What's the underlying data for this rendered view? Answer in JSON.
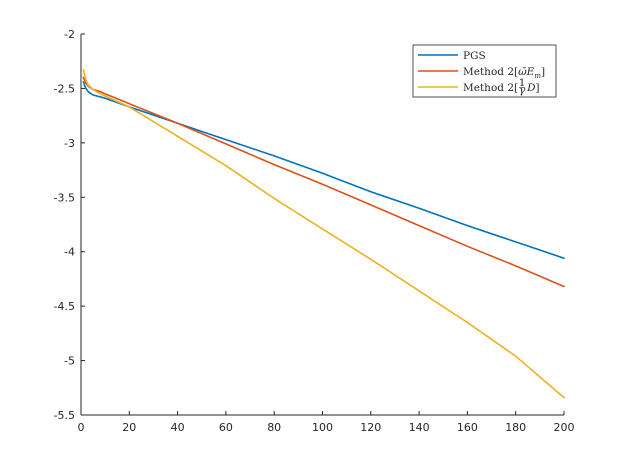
{
  "chart_data": {
    "type": "line",
    "title": "",
    "xlabel": "",
    "ylabel": "",
    "xlim": [
      0,
      200
    ],
    "ylim": [
      -5.5,
      -2
    ],
    "xticks": [
      0,
      20,
      40,
      60,
      80,
      100,
      120,
      140,
      160,
      180,
      200
    ],
    "xtick_labels": [
      "0",
      "20",
      "40",
      "60",
      "80",
      "100",
      "120",
      "140",
      "160",
      "180",
      "200"
    ],
    "yticks": [
      -2,
      -2.5,
      -3,
      -3.5,
      -4,
      -4.5,
      -5,
      -5.5
    ],
    "ytick_labels": [
      "-2",
      "-2.5",
      "-3",
      "-3.5",
      "-4",
      "-4.5",
      "-5",
      "-5.5"
    ],
    "grid": false,
    "legend_position": "top-right",
    "series": [
      {
        "name": "PGS",
        "color": "#0072BD",
        "x": [
          1,
          2,
          3,
          5,
          10,
          20,
          40,
          60,
          80,
          100,
          120,
          140,
          160,
          180,
          200
        ],
        "y": [
          -2.44,
          -2.5,
          -2.53,
          -2.56,
          -2.59,
          -2.67,
          -2.82,
          -2.97,
          -3.12,
          -3.28,
          -3.45,
          -3.6,
          -3.76,
          -3.91,
          -4.06
        ]
      },
      {
        "name": "Method 2[ω̄E_m]",
        "color": "#D95319",
        "x": [
          1,
          2,
          3,
          5,
          8,
          10,
          20,
          40,
          60,
          80,
          100,
          120,
          140,
          160,
          180,
          200
        ],
        "y": [
          -2.4,
          -2.45,
          -2.48,
          -2.51,
          -2.53,
          -2.55,
          -2.64,
          -2.82,
          -3.01,
          -3.2,
          -3.38,
          -3.57,
          -3.76,
          -3.95,
          -4.13,
          -4.32
        ]
      },
      {
        "name": "Method 2[(1/γ)D]",
        "color": "#EDB120",
        "x": [
          1,
          2,
          3,
          5,
          8,
          10,
          20,
          40,
          60,
          80,
          100,
          120,
          140,
          160,
          180,
          200
        ],
        "y": [
          -2.33,
          -2.42,
          -2.47,
          -2.51,
          -2.55,
          -2.57,
          -2.67,
          -2.94,
          -3.21,
          -3.51,
          -3.79,
          -4.07,
          -4.36,
          -4.65,
          -4.96,
          -5.34
        ]
      }
    ]
  }
}
